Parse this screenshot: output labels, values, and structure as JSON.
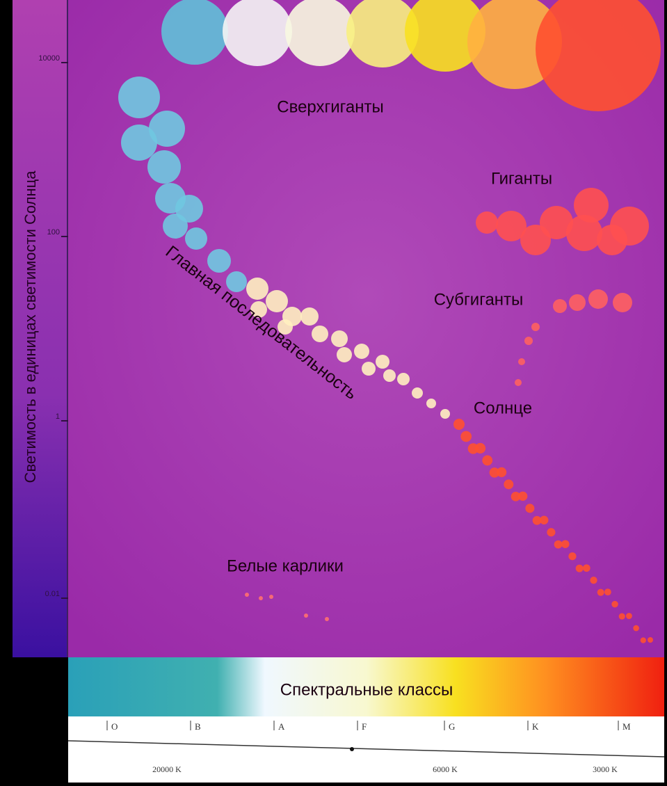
{
  "axis": {
    "label": "Светимость в единицах светимости Солнца",
    "ticks": [
      "10000",
      "100",
      "1",
      "0.01"
    ]
  },
  "regions": {
    "supergiants": "Сверхгиганты",
    "giants": "Гиганты",
    "subgiants": "Субгиганты",
    "sun": "Солнце",
    "main_sequence": "Главная последовательность",
    "white_dwarfs": "Белые карлики"
  },
  "spectral": {
    "title": "Спектральные классы",
    "classes": [
      "O",
      "B",
      "A",
      "F",
      "G",
      "K",
      "M"
    ],
    "temperatures": [
      "20000 K",
      "6000 K",
      "3000 K"
    ]
  }
}
